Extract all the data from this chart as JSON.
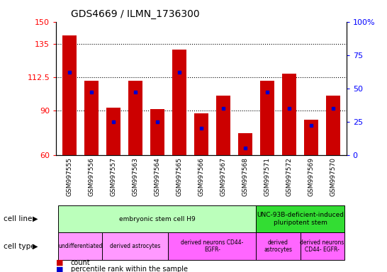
{
  "title": "GDS4669 / ILMN_1736300",
  "samples": [
    "GSM997555",
    "GSM997556",
    "GSM997557",
    "GSM997563",
    "GSM997564",
    "GSM997565",
    "GSM997566",
    "GSM997567",
    "GSM997568",
    "GSM997571",
    "GSM997572",
    "GSM997569",
    "GSM997570"
  ],
  "counts": [
    141,
    110,
    92,
    110,
    91,
    131,
    88,
    100,
    75,
    110,
    115,
    84,
    100
  ],
  "percentile_ranks": [
    62,
    47,
    25,
    47,
    25,
    62,
    20,
    35,
    5,
    47,
    35,
    22,
    35
  ],
  "ymin": 60,
  "ymax": 150,
  "yticks": [
    60,
    90,
    112.5,
    135,
    150
  ],
  "ytick_labels": [
    "60",
    "90",
    "112.5",
    "135",
    "150"
  ],
  "right_yticks": [
    0,
    25,
    50,
    75,
    100
  ],
  "right_ytick_labels": [
    "0",
    "25",
    "50",
    "75",
    "100%"
  ],
  "bar_color": "#cc0000",
  "pct_color": "#0000cc",
  "cell_line_groups": [
    {
      "label": "embryonic stem cell H9",
      "start": 0,
      "end": 9,
      "color": "#bbffbb"
    },
    {
      "label": "UNC-93B-deficient-induced\npluripotent stem",
      "start": 9,
      "end": 13,
      "color": "#33dd33"
    }
  ],
  "cell_type_groups": [
    {
      "label": "undifferentiated",
      "start": 0,
      "end": 2,
      "color": "#ff99ff"
    },
    {
      "label": "derived astrocytes",
      "start": 2,
      "end": 5,
      "color": "#ff99ff"
    },
    {
      "label": "derived neurons CD44-\nEGFR-",
      "start": 5,
      "end": 9,
      "color": "#ff66ff"
    },
    {
      "label": "derived\nastrocytes",
      "start": 9,
      "end": 11,
      "color": "#ff66ff"
    },
    {
      "label": "derived neurons\nCD44- EGFR-",
      "start": 11,
      "end": 13,
      "color": "#ff66ff"
    }
  ],
  "bg_color": "#ffffff"
}
